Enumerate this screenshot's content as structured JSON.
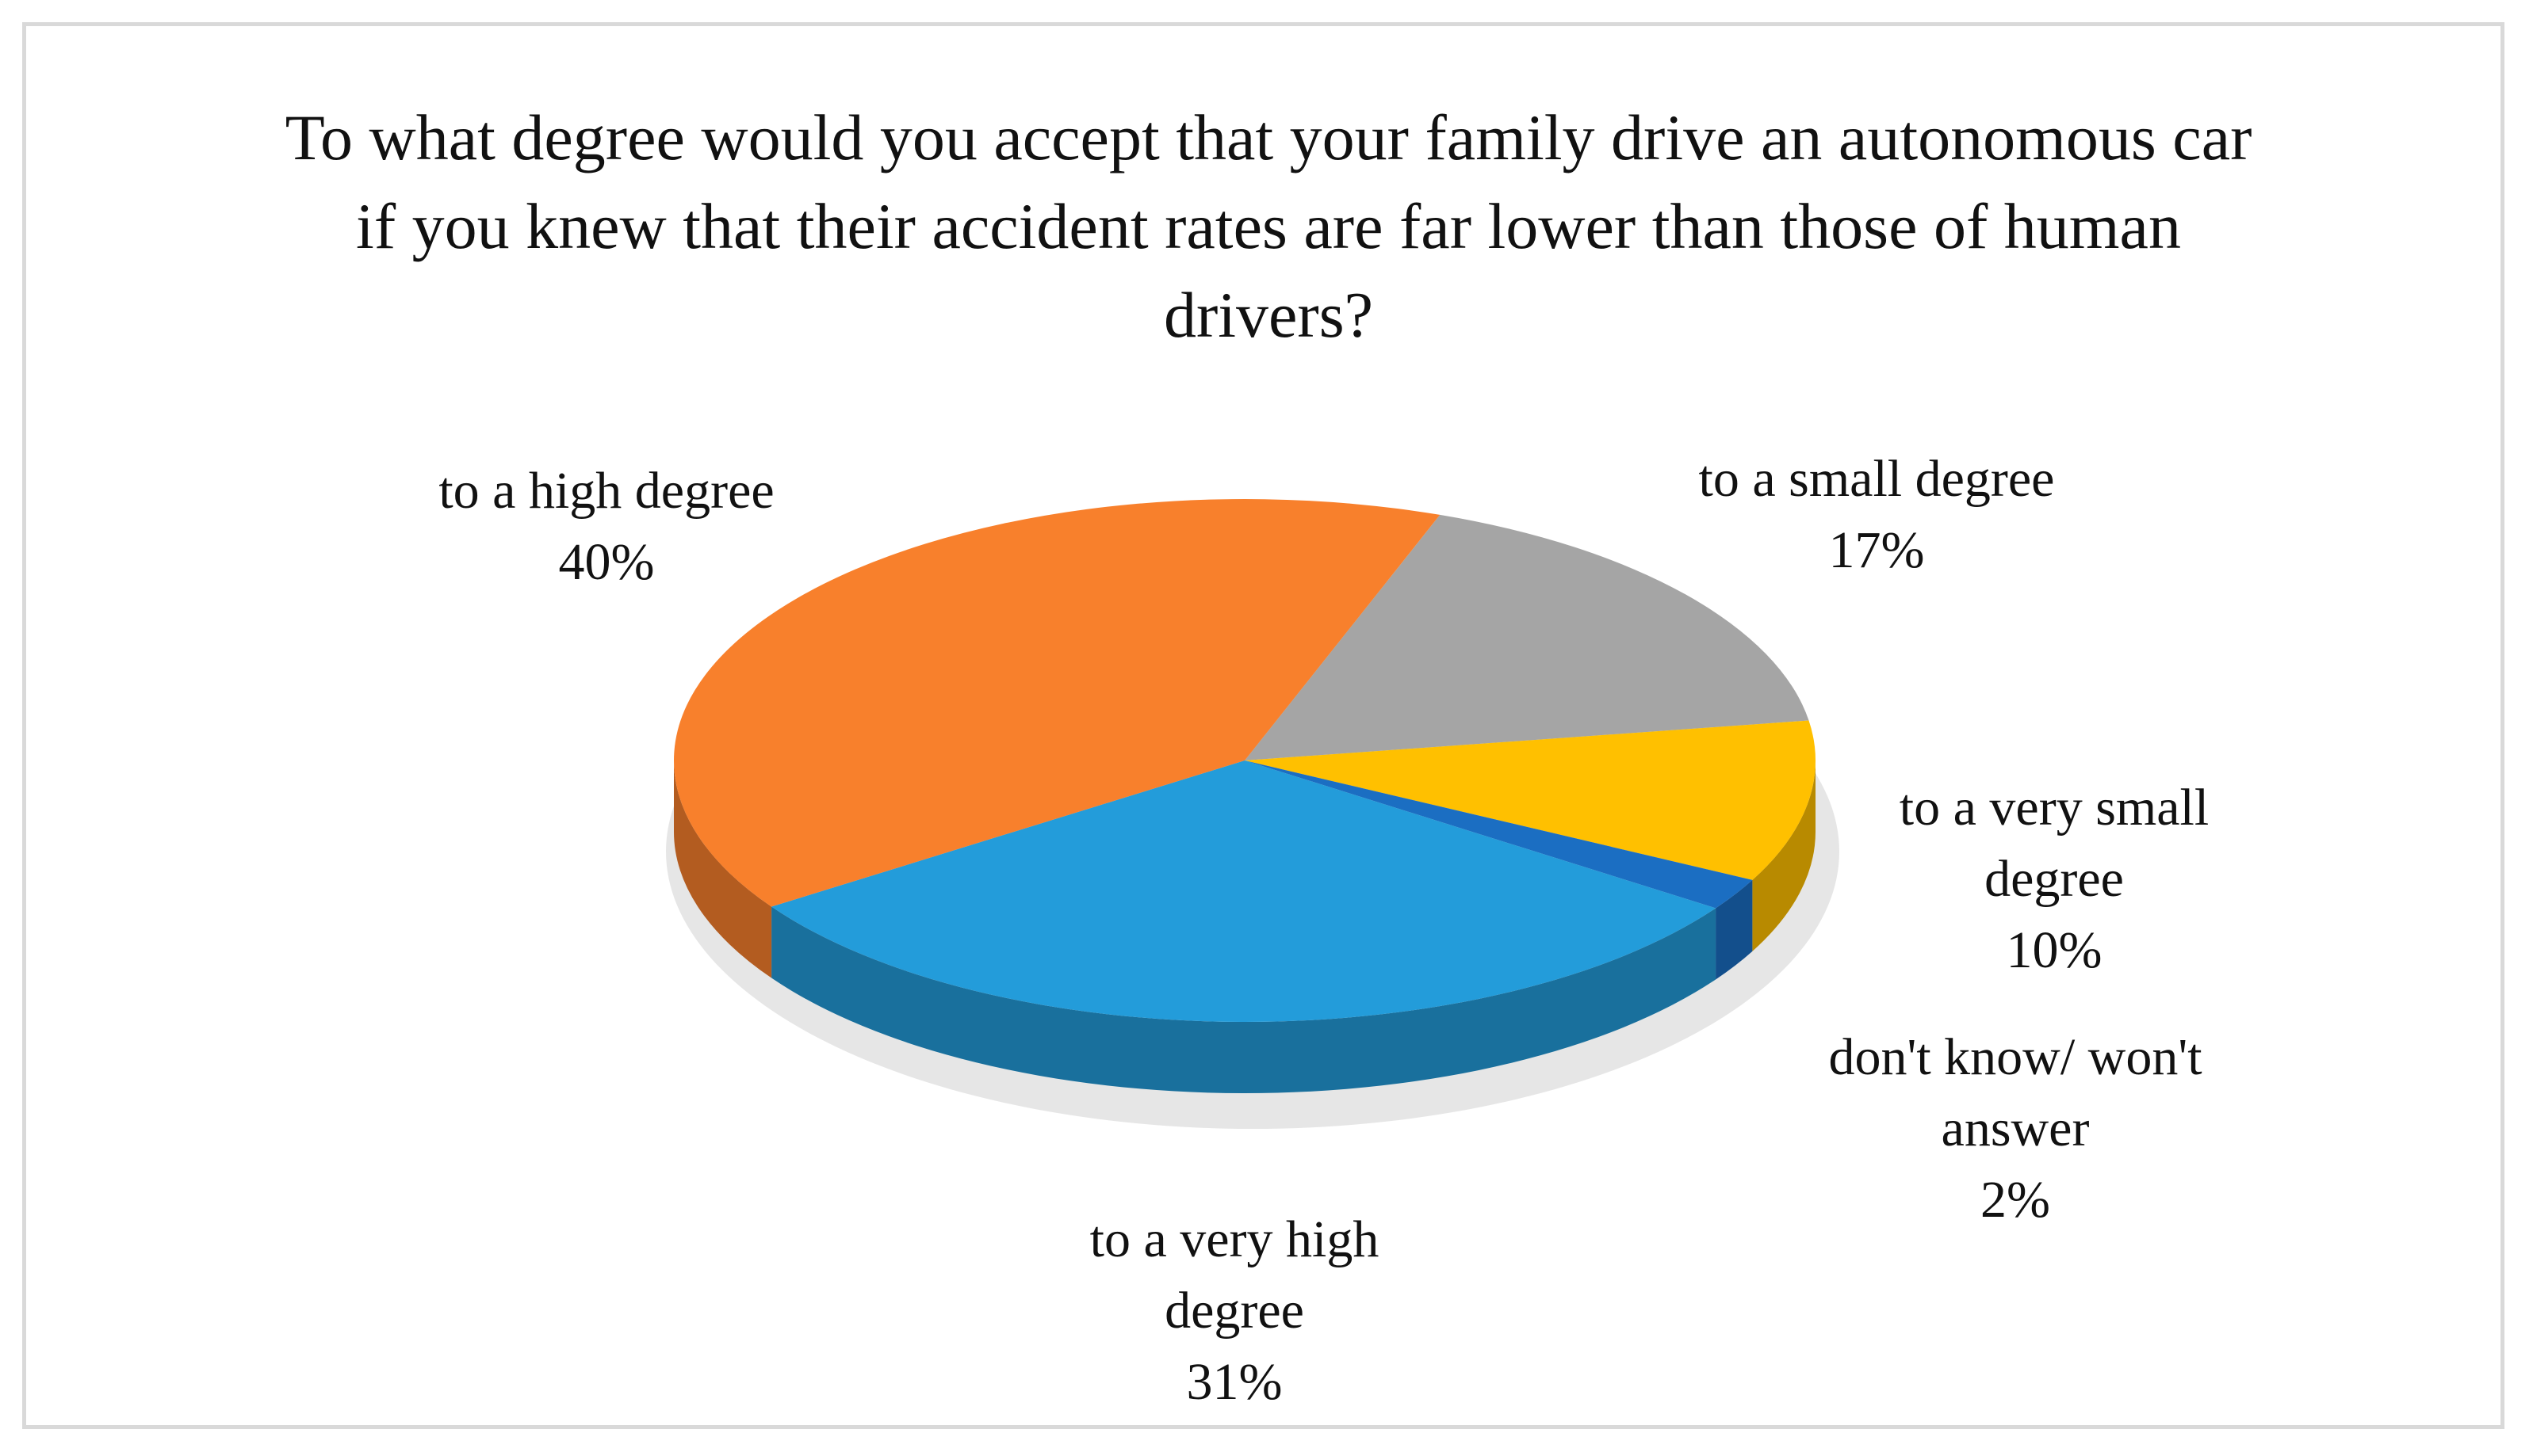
{
  "chart_data": {
    "type": "pie3d",
    "title": "To what degree would you accept that your family drive an autonomous car if you knew that their accident rates are far lower than those of human drivers?",
    "categories": [
      "to a small degree",
      "to a very small degree",
      "don't know/ won't answer",
      "to a very high degree",
      "to a high degree"
    ],
    "values": [
      17,
      10,
      2,
      31,
      40
    ],
    "value_labels": [
      "17%",
      "10%",
      "2%",
      "31%",
      "40%"
    ],
    "colors": [
      "#A5A5A5",
      "#FFC000",
      "#1B6EC2",
      "#239CDA",
      "#F8802C"
    ]
  }
}
